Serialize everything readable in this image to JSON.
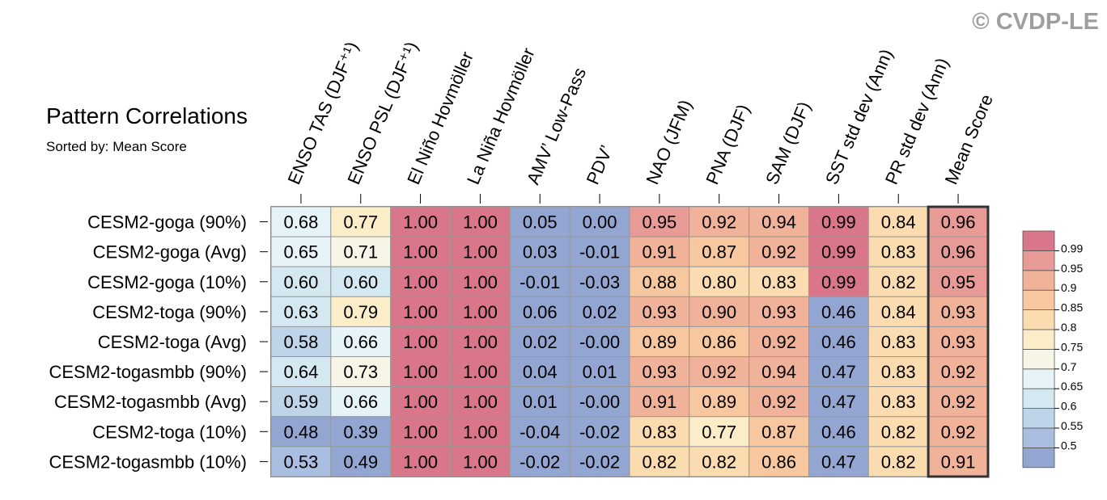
{
  "watermark": "© CVDP-LE",
  "title": "Pattern Correlations",
  "subtitle": "Sorted by: Mean Score",
  "colors": {
    "grid": "#999999",
    "highlight_border": "#333333",
    "text": "#000000",
    "watermark": "#9e9e9e"
  },
  "colorbar": {
    "levels": [
      0.5,
      0.55,
      0.6,
      0.65,
      0.7,
      0.75,
      0.8,
      0.85,
      0.9,
      0.95,
      0.99
    ],
    "labels": [
      "0.5",
      "0.55",
      "0.6",
      "0.65",
      "0.7",
      "0.75",
      "0.8",
      "0.85",
      "0.9",
      "0.95",
      "0.99"
    ],
    "colors": [
      "#93a6d1",
      "#a9bee0",
      "#bdd4e9",
      "#d4e8f1",
      "#e6f3f8",
      "#f7f5e6",
      "#fbedc7",
      "#fbdcb0",
      "#f7c79f",
      "#f1b29a",
      "#e79a96",
      "#d9768a"
    ]
  },
  "chart_data": {
    "type": "heatmap",
    "title": "Pattern Correlations",
    "subtitle": "Sorted by: Mean Score",
    "columns": [
      "ENSO TAS (DJF⁺¹)",
      "ENSO PSL (DJF⁺¹)",
      "El Niño Hovmöller",
      "La Niña Hovmöller",
      "AMV’ Low-Pass",
      "PDV’",
      "NAO (JFM)",
      "PNA (DJF)",
      "SAM (DJF)",
      "SST std dev (Ann)",
      "PR std dev (Ann)",
      "Mean Score"
    ],
    "rows": [
      "CESM2-goga (90%)",
      "CESM2-goga (Avg)",
      "CESM2-goga (10%)",
      "CESM2-toga (90%)",
      "CESM2-toga (Avg)",
      "CESM2-togasmbb (90%)",
      "CESM2-togasmbb (Avg)",
      "CESM2-toga (10%)",
      "CESM2-togasmbb (10%)"
    ],
    "values": [
      [
        "0.68",
        "0.77",
        "1.00",
        "1.00",
        "0.05",
        "0.00",
        "0.95",
        "0.92",
        "0.94",
        "0.99",
        "0.84",
        "0.96"
      ],
      [
        "0.65",
        "0.71",
        "1.00",
        "1.00",
        "0.03",
        "-0.01",
        "0.91",
        "0.87",
        "0.92",
        "0.99",
        "0.83",
        "0.96"
      ],
      [
        "0.60",
        "0.60",
        "1.00",
        "1.00",
        "-0.01",
        "-0.03",
        "0.88",
        "0.80",
        "0.83",
        "0.99",
        "0.82",
        "0.95"
      ],
      [
        "0.63",
        "0.79",
        "1.00",
        "1.00",
        "0.06",
        "0.02",
        "0.93",
        "0.90",
        "0.93",
        "0.46",
        "0.84",
        "0.93"
      ],
      [
        "0.58",
        "0.66",
        "1.00",
        "1.00",
        "0.02",
        "-0.00",
        "0.89",
        "0.86",
        "0.92",
        "0.46",
        "0.83",
        "0.93"
      ],
      [
        "0.64",
        "0.73",
        "1.00",
        "1.00",
        "0.04",
        "0.01",
        "0.93",
        "0.92",
        "0.94",
        "0.47",
        "0.83",
        "0.92"
      ],
      [
        "0.59",
        "0.66",
        "1.00",
        "1.00",
        "0.01",
        "-0.00",
        "0.91",
        "0.89",
        "0.92",
        "0.47",
        "0.83",
        "0.92"
      ],
      [
        "0.48",
        "0.39",
        "1.00",
        "1.00",
        "-0.04",
        "-0.02",
        "0.83",
        "0.77",
        "0.87",
        "0.46",
        "0.82",
        "0.92"
      ],
      [
        "0.53",
        "0.49",
        "1.00",
        "1.00",
        "-0.02",
        "-0.02",
        "0.82",
        "0.82",
        "0.86",
        "0.47",
        "0.82",
        "0.91"
      ]
    ],
    "highlight_column": "Mean Score"
  }
}
